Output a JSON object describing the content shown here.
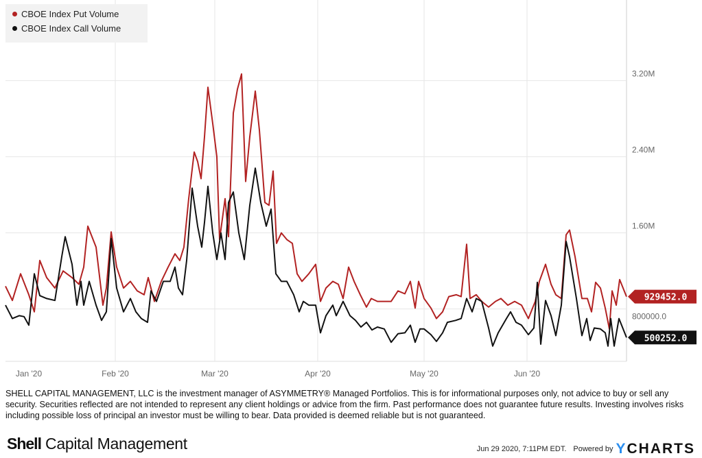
{
  "chart_data": {
    "type": "line",
    "title": "",
    "xlabel": "",
    "ylabel": "",
    "x_unit": "days since Jan 1 2020",
    "xlim": [
      0,
      181
    ],
    "ylim": [
      0.25,
      3.99
    ],
    "y_unit": "M",
    "grid": true,
    "legend_placement": "top-left",
    "y_ticks": [
      {
        "value": 0.8,
        "label": "800000.0"
      },
      {
        "value": 1.6,
        "label": "1.60M"
      },
      {
        "value": 2.4,
        "label": "2.40M"
      },
      {
        "value": 3.2,
        "label": "3.20M"
      }
    ],
    "x_ticks": [
      {
        "day": 6,
        "label": "Jan '20"
      },
      {
        "day": 32,
        "label": "Feb '20"
      },
      {
        "day": 61,
        "label": "Mar '20"
      },
      {
        "day": 91,
        "label": "Apr '20"
      },
      {
        "day": 122,
        "label": "May '20"
      },
      {
        "day": 152,
        "label": "Jun '20"
      }
    ],
    "series": [
      {
        "name": "CBOE Index Put Volume",
        "color": "#b22222",
        "last_label": "929452.0",
        "points": [
          [
            0,
            1.04
          ],
          [
            2,
            0.89
          ],
          [
            4.4,
            1.17
          ],
          [
            6.8,
            0.95
          ],
          [
            8.4,
            0.77
          ],
          [
            10,
            1.31
          ],
          [
            12,
            1.13
          ],
          [
            14.4,
            1.02
          ],
          [
            16.8,
            1.2
          ],
          [
            19.4,
            1.13
          ],
          [
            21.4,
            1.06
          ],
          [
            22.8,
            1.24
          ],
          [
            24,
            1.67
          ],
          [
            26.4,
            1.45
          ],
          [
            28.4,
            0.84
          ],
          [
            29.4,
            1.02
          ],
          [
            30.8,
            1.61
          ],
          [
            32.4,
            1.24
          ],
          [
            34.4,
            1.02
          ],
          [
            36.4,
            1.09
          ],
          [
            38.4,
            0.99
          ],
          [
            40.4,
            0.95
          ],
          [
            41.6,
            1.13
          ],
          [
            43.4,
            0.88
          ],
          [
            45.4,
            1.09
          ],
          [
            47.4,
            1.24
          ],
          [
            49.4,
            1.38
          ],
          [
            50.8,
            1.31
          ],
          [
            52,
            1.45
          ],
          [
            53.4,
            1.96
          ],
          [
            55,
            2.45
          ],
          [
            56,
            2.35
          ],
          [
            57,
            2.17
          ],
          [
            58,
            2.61
          ],
          [
            59,
            3.13
          ],
          [
            60.4,
            2.75
          ],
          [
            61.6,
            2.4
          ],
          [
            62.4,
            1.53
          ],
          [
            64,
            1.96
          ],
          [
            65,
            1.56
          ],
          [
            66.4,
            2.86
          ],
          [
            67.6,
            3.11
          ],
          [
            68.8,
            3.27
          ],
          [
            70,
            2.14
          ],
          [
            71.2,
            2.61
          ],
          [
            72.8,
            3.09
          ],
          [
            74,
            2.68
          ],
          [
            75.6,
            1.92
          ],
          [
            76.8,
            1.89
          ],
          [
            78,
            2.25
          ],
          [
            79,
            1.49
          ],
          [
            80.4,
            1.6
          ],
          [
            82,
            1.53
          ],
          [
            83.6,
            1.49
          ],
          [
            85,
            1.17
          ],
          [
            86.4,
            1.09
          ],
          [
            88.4,
            1.17
          ],
          [
            90.4,
            1.27
          ],
          [
            91.8,
            0.88
          ],
          [
            93.4,
            1.02
          ],
          [
            95.4,
            1.09
          ],
          [
            97,
            1.06
          ],
          [
            98.4,
            0.91
          ],
          [
            100,
            1.24
          ],
          [
            101.6,
            1.09
          ],
          [
            103.4,
            0.95
          ],
          [
            105.2,
            0.82
          ],
          [
            106.6,
            0.91
          ],
          [
            108.4,
            0.88
          ],
          [
            110.4,
            0.88
          ],
          [
            112.4,
            0.88
          ],
          [
            114.4,
            0.99
          ],
          [
            116.4,
            0.96
          ],
          [
            118,
            1.09
          ],
          [
            119.4,
            0.81
          ],
          [
            120.4,
            1.09
          ],
          [
            122,
            0.91
          ],
          [
            124,
            0.81
          ],
          [
            125.6,
            0.7
          ],
          [
            127.4,
            0.77
          ],
          [
            129.2,
            0.93
          ],
          [
            131.4,
            0.95
          ],
          [
            132.8,
            0.93
          ],
          [
            134.4,
            1.48
          ],
          [
            135.4,
            0.91
          ],
          [
            137.2,
            0.95
          ],
          [
            138.8,
            0.88
          ],
          [
            140.8,
            0.82
          ],
          [
            142.8,
            0.88
          ],
          [
            144.4,
            0.91
          ],
          [
            146.4,
            0.84
          ],
          [
            148.4,
            0.88
          ],
          [
            150.4,
            0.84
          ],
          [
            152.4,
            0.7
          ],
          [
            154.4,
            0.88
          ],
          [
            155.6,
            1.09
          ],
          [
            157.4,
            1.27
          ],
          [
            159,
            1.06
          ],
          [
            160.4,
            0.95
          ],
          [
            162,
            0.91
          ],
          [
            163.4,
            1.58
          ],
          [
            164.4,
            1.63
          ],
          [
            166,
            1.35
          ],
          [
            168,
            0.91
          ],
          [
            169.6,
            0.91
          ],
          [
            170.8,
            0.77
          ],
          [
            172,
            1.08
          ],
          [
            173.4,
            1.02
          ],
          [
            174.8,
            0.81
          ],
          [
            176,
            0.59
          ],
          [
            176.8,
            0.99
          ],
          [
            178,
            0.84
          ],
          [
            179,
            1.11
          ],
          [
            181,
            0.93
          ]
        ]
      },
      {
        "name": "CBOE Index Call Volume",
        "color": "#111111",
        "last_label": "500252.0",
        "points": [
          [
            0,
            0.84
          ],
          [
            2,
            0.7
          ],
          [
            4,
            0.73
          ],
          [
            5.4,
            0.72
          ],
          [
            6.8,
            0.63
          ],
          [
            8.4,
            1.17
          ],
          [
            10,
            0.94
          ],
          [
            12,
            0.91
          ],
          [
            14.4,
            0.89
          ],
          [
            16.4,
            1.35
          ],
          [
            17.4,
            1.56
          ],
          [
            19.4,
            1.27
          ],
          [
            20.8,
            0.84
          ],
          [
            22,
            1.09
          ],
          [
            22.8,
            0.84
          ],
          [
            24.4,
            1.09
          ],
          [
            26.4,
            0.84
          ],
          [
            28,
            0.68
          ],
          [
            29.4,
            0.77
          ],
          [
            30.8,
            1.54
          ],
          [
            32.4,
            1.02
          ],
          [
            34.4,
            0.77
          ],
          [
            36.4,
            0.91
          ],
          [
            38,
            0.77
          ],
          [
            39.6,
            0.7
          ],
          [
            41.4,
            0.66
          ],
          [
            42.4,
            0.99
          ],
          [
            44,
            0.88
          ],
          [
            46,
            1.09
          ],
          [
            48,
            1.09
          ],
          [
            49.4,
            1.24
          ],
          [
            50.4,
            1.02
          ],
          [
            51.6,
            0.95
          ],
          [
            52.8,
            1.31
          ],
          [
            54.4,
            2.07
          ],
          [
            56,
            1.67
          ],
          [
            57.2,
            1.45
          ],
          [
            58,
            1.71
          ],
          [
            59,
            2.09
          ],
          [
            60.4,
            1.6
          ],
          [
            61.6,
            1.32
          ],
          [
            62.8,
            1.6
          ],
          [
            64,
            1.32
          ],
          [
            65,
            1.92
          ],
          [
            66.4,
            2.03
          ],
          [
            68,
            1.6
          ],
          [
            69.6,
            1.32
          ],
          [
            71.2,
            1.89
          ],
          [
            72.8,
            2.28
          ],
          [
            74.4,
            1.92
          ],
          [
            76,
            1.67
          ],
          [
            77.4,
            1.85
          ],
          [
            78.8,
            1.17
          ],
          [
            80.4,
            1.09
          ],
          [
            82,
            1.09
          ],
          [
            84,
            0.95
          ],
          [
            85.6,
            0.77
          ],
          [
            86.8,
            0.88
          ],
          [
            88.4,
            0.84
          ],
          [
            90.4,
            0.84
          ],
          [
            91.8,
            0.55
          ],
          [
            93.4,
            0.73
          ],
          [
            95.4,
            0.84
          ],
          [
            96.4,
            0.73
          ],
          [
            98.4,
            0.88
          ],
          [
            100.4,
            0.73
          ],
          [
            102,
            0.68
          ],
          [
            103.6,
            0.61
          ],
          [
            105.2,
            0.66
          ],
          [
            106.8,
            0.58
          ],
          [
            108.4,
            0.61
          ],
          [
            110.4,
            0.59
          ],
          [
            112.4,
            0.45
          ],
          [
            114.4,
            0.54
          ],
          [
            116.4,
            0.55
          ],
          [
            118,
            0.63
          ],
          [
            119.4,
            0.45
          ],
          [
            120.8,
            0.59
          ],
          [
            122,
            0.59
          ],
          [
            124,
            0.53
          ],
          [
            125.6,
            0.46
          ],
          [
            127.4,
            0.55
          ],
          [
            128.8,
            0.66
          ],
          [
            131.2,
            0.68
          ],
          [
            132.8,
            0.7
          ],
          [
            134.4,
            0.91
          ],
          [
            136,
            0.77
          ],
          [
            137.2,
            0.91
          ],
          [
            138.8,
            0.88
          ],
          [
            140.8,
            0.6
          ],
          [
            142,
            0.41
          ],
          [
            143.6,
            0.55
          ],
          [
            146,
            0.7
          ],
          [
            147.2,
            0.77
          ],
          [
            148.8,
            0.66
          ],
          [
            150.4,
            0.63
          ],
          [
            152.4,
            0.53
          ],
          [
            154,
            0.6
          ],
          [
            155,
            1.08
          ],
          [
            156,
            0.43
          ],
          [
            157.4,
            0.89
          ],
          [
            159,
            0.73
          ],
          [
            160.4,
            0.52
          ],
          [
            162,
            0.84
          ],
          [
            163.4,
            1.51
          ],
          [
            164.4,
            1.35
          ],
          [
            166.4,
            0.91
          ],
          [
            168,
            0.52
          ],
          [
            169.4,
            0.7
          ],
          [
            170.4,
            0.47
          ],
          [
            171.6,
            0.6
          ],
          [
            173.4,
            0.59
          ],
          [
            174.8,
            0.55
          ],
          [
            175.6,
            0.41
          ],
          [
            176.4,
            0.7
          ],
          [
            177.4,
            0.41
          ],
          [
            178.8,
            0.7
          ],
          [
            181,
            0.5
          ]
        ]
      }
    ]
  },
  "legend": {
    "put": "CBOE Index Put Volume",
    "call": "CBOE Index Call Volume"
  },
  "disclaimer": "SHELL CAPITAL MANAGEMENT, LLC is the investment manager of ASYMMETRY® Managed Portfolios. This is for informational purposes only, not advice to buy or sell any security. Securities reflected are not intended to represent any client holdings or advice from the firm. Past performance does not guarantee future results. Investing involves risks including possible loss of principal an investor must be willing to bear. Data provided is deemed reliable but is not guaranteed.",
  "logo": {
    "bold": "Shell",
    "rest": " Capital Management"
  },
  "footer": {
    "timestamp": "Jun 29 2020, 7:11PM EDT.",
    "powered_by": "Powered by",
    "brand_y": "Y",
    "brand_rest": "CHARTS"
  }
}
